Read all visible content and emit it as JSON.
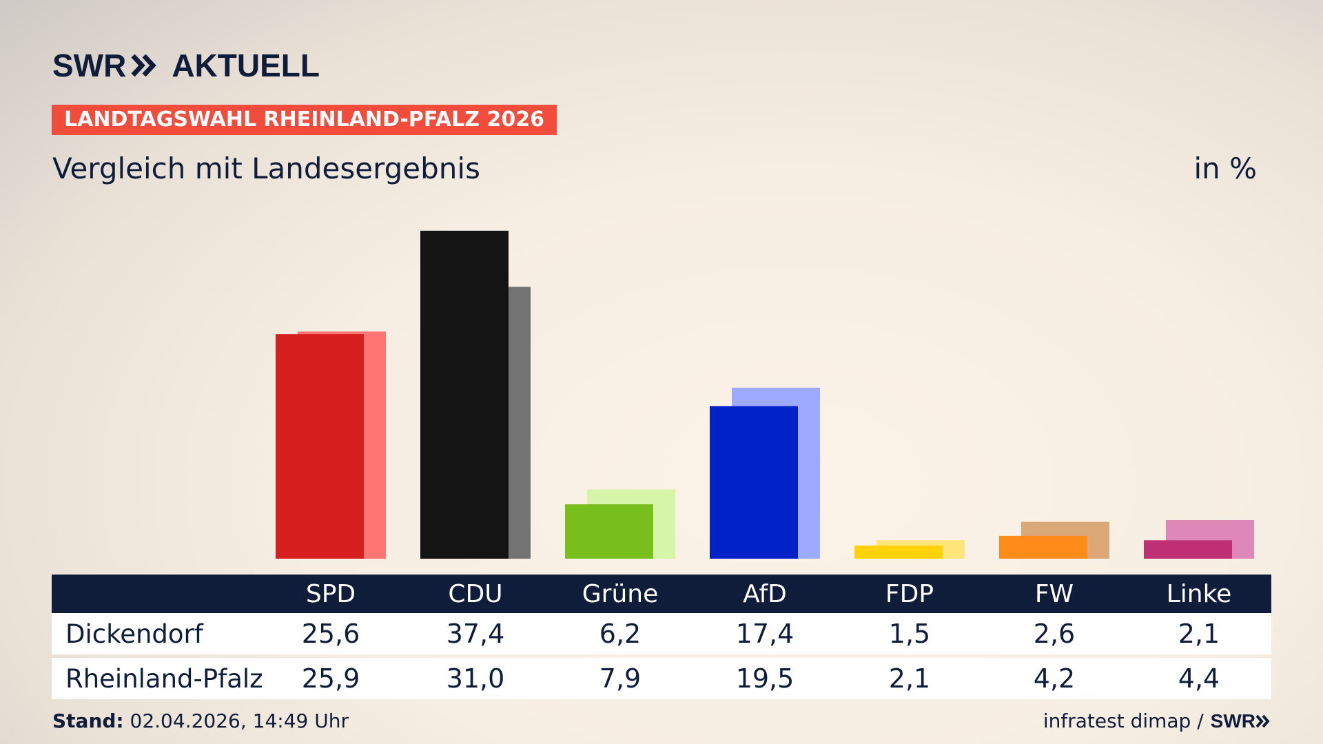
{
  "header": {
    "logo_left": "SWR",
    "logo_right": "AKTUELL",
    "banner": "LANDTAGSWAHL RHEINLAND-PFALZ 2026",
    "subtitle": "Vergleich mit Landesergebnis",
    "unit": "in %"
  },
  "chart_data": {
    "type": "bar",
    "categories": [
      "SPD",
      "CDU",
      "Grüne",
      "AfD",
      "FDP",
      "FW",
      "Linke"
    ],
    "series": [
      {
        "name": "Dickendorf",
        "values": [
          25.6,
          37.4,
          6.2,
          17.4,
          1.5,
          2.6,
          2.1
        ],
        "labels": [
          "25,6",
          "37,4",
          "6,2",
          "17,4",
          "1,5",
          "2,6",
          "2,1"
        ]
      },
      {
        "name": "Rheinland-Pfalz",
        "values": [
          25.9,
          31.0,
          7.9,
          19.5,
          2.1,
          4.2,
          4.4
        ],
        "labels": [
          "25,9",
          "31,0",
          "7,9",
          "19,5",
          "2,1",
          "4,2",
          "4,4"
        ]
      }
    ],
    "colors_primary": [
      "#d81f1f",
      "#141414",
      "#78be1d",
      "#0022c8",
      "#ffd20a",
      "#ff8c19",
      "#bf2f73"
    ],
    "colors_secondary": [
      "#ff7573",
      "#737373",
      "#d6f5a8",
      "#9eaaff",
      "#ffe57a",
      "#dca878",
      "#dd88b8"
    ],
    "ylim": [
      0,
      40
    ]
  },
  "footer": {
    "stand_label": "Stand:",
    "stand_value": "02.04.2026, 14:49 Uhr",
    "source": "infratest dimap /",
    "source_logo": "SWR"
  }
}
